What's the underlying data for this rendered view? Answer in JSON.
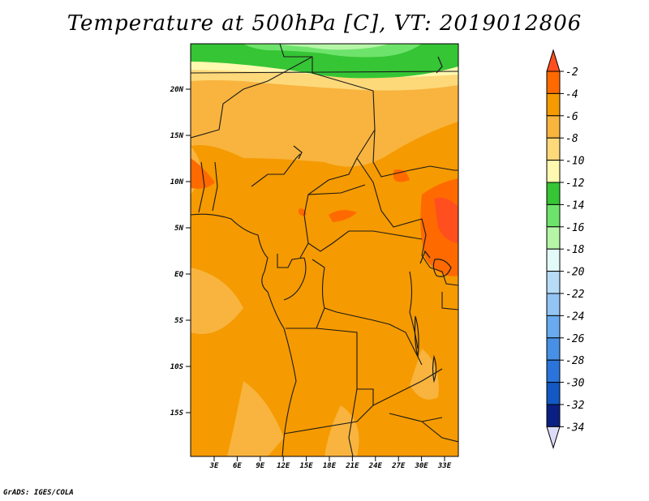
{
  "title": "Temperature at 500hPa [C], VT: 2019012806",
  "credit": "GrADS: IGES/COLA",
  "map": {
    "lat_ticks": [
      "20N",
      "15N",
      "10N",
      "5N",
      "EQ",
      "5S",
      "10S",
      "15S"
    ],
    "lon_ticks": [
      "3E",
      "6E",
      "9E",
      "12E",
      "15E",
      "18E",
      "21E",
      "24E",
      "27E",
      "30E",
      "33E"
    ]
  },
  "colorbar": {
    "labels": [
      "-2",
      "-4",
      "-6",
      "-8",
      "-10",
      "-12",
      "-14",
      "-16",
      "-18",
      "-20",
      "-22",
      "-24",
      "-26",
      "-28",
      "-30",
      "-32",
      "-34"
    ],
    "colors": [
      "#ff4f1f",
      "#ff6a00",
      "#f59a00",
      "#f8b43e",
      "#fdd97a",
      "#fef8b0",
      "#35c535",
      "#6ee36b",
      "#b6f5a8",
      "#e3fbf8",
      "#b8dcf8",
      "#92c4f4",
      "#6aaaee",
      "#4890e6",
      "#2a74dc",
      "#1358c4",
      "#0a1f82",
      "#dcdcf8"
    ]
  }
}
